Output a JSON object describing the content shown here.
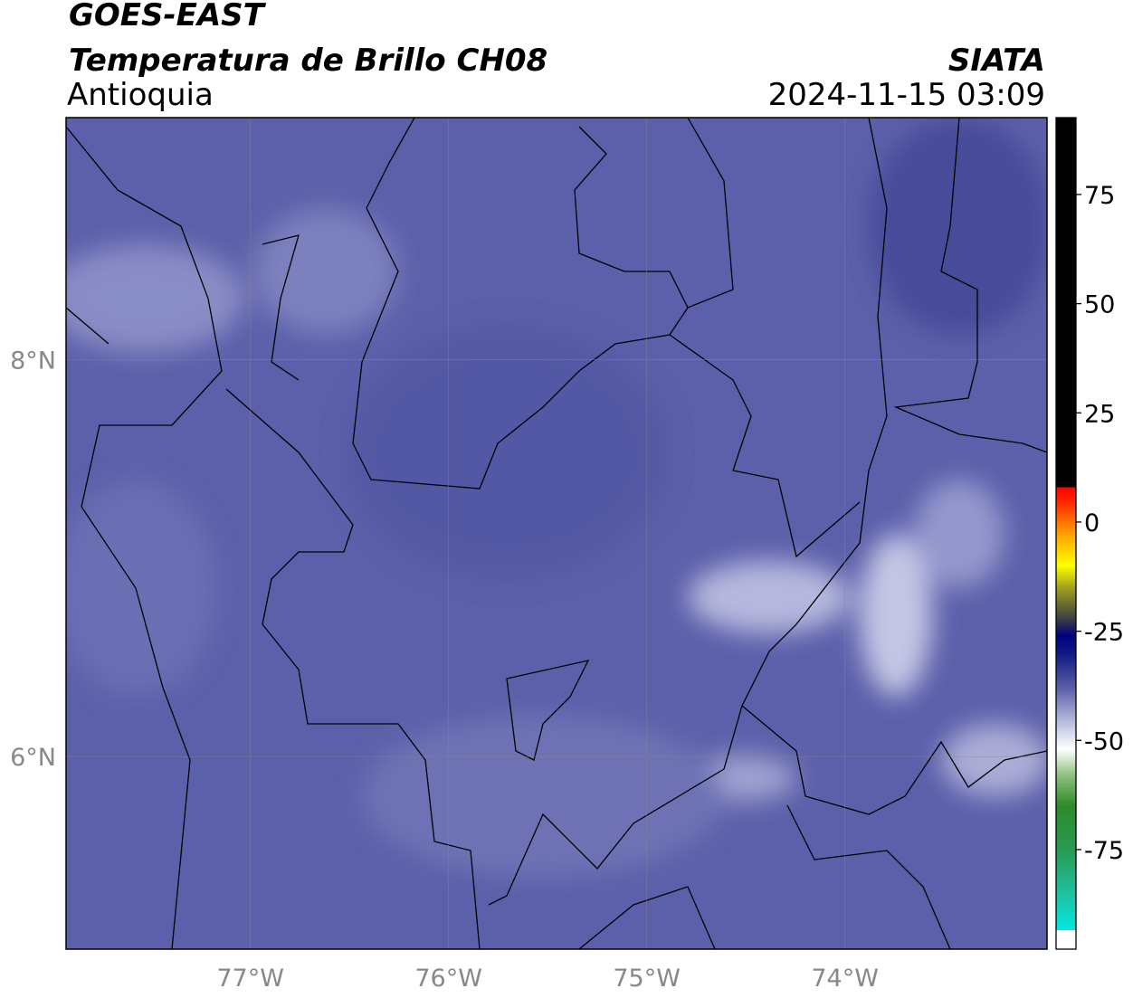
{
  "header": {
    "title": "GOES-EAST",
    "subtitle": "Temperatura de Brillo CH08",
    "region": "Antioquia",
    "source": "SIATA",
    "timestamp": "2024-11-15 03:09"
  },
  "map": {
    "lon_range": [
      -77.93,
      -72.98
    ],
    "lat_range": [
      5.03,
      9.22
    ],
    "lon_ticks": [
      {
        "value": -77,
        "label": "77°W"
      },
      {
        "value": -76,
        "label": "76°W"
      },
      {
        "value": -75,
        "label": "75°W"
      },
      {
        "value": -74,
        "label": "74°W"
      }
    ],
    "lat_ticks": [
      {
        "value": 6,
        "label": "6°N"
      },
      {
        "value": 8,
        "label": "8°N"
      }
    ],
    "grid": true
  },
  "colorbar": {
    "range": [
      -97.8,
      92.6
    ],
    "ticks": [
      75,
      50,
      25,
      0,
      -25,
      -50,
      -75
    ],
    "colormap": [
      {
        "value": -97.8,
        "color": "#ffffff"
      },
      {
        "value": -93.5,
        "color": "#ffffff"
      },
      {
        "value": -93.5,
        "color": "#00e8e0"
      },
      {
        "value": -85,
        "color": "#20c0a0"
      },
      {
        "value": -75,
        "color": "#2a9a50"
      },
      {
        "value": -65,
        "color": "#2e8a2a"
      },
      {
        "value": -58,
        "color": "#90c080"
      },
      {
        "value": -52,
        "color": "#ffffff"
      },
      {
        "value": -45,
        "color": "#b0b4d8"
      },
      {
        "value": -38,
        "color": "#5a5ea8"
      },
      {
        "value": -30,
        "color": "#101880"
      },
      {
        "value": -26,
        "color": "#000080"
      },
      {
        "value": -22,
        "color": "#404040"
      },
      {
        "value": -15,
        "color": "#a0a020"
      },
      {
        "value": -10,
        "color": "#ffff00"
      },
      {
        "value": -3,
        "color": "#ffa500"
      },
      {
        "value": 5,
        "color": "#ff2000"
      },
      {
        "value": 8,
        "color": "#ff0000"
      },
      {
        "value": 8,
        "color": "#000000"
      },
      {
        "value": 92.6,
        "color": "#000000"
      }
    ]
  }
}
